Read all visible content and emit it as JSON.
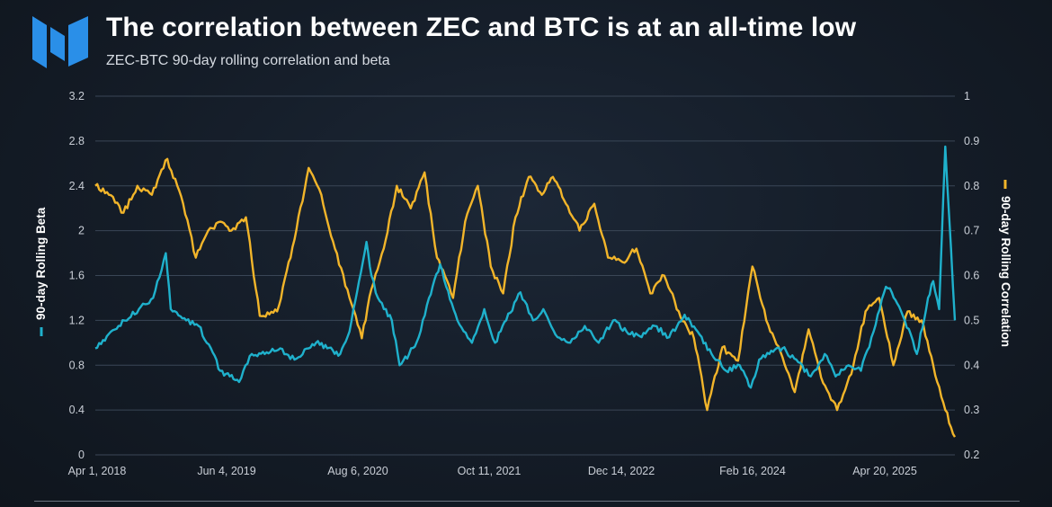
{
  "header": {
    "title": "The correlation between ZEC and BTC is at an all-time low",
    "subtitle": "ZEC-BTC 90-day rolling correlation and beta"
  },
  "colors": {
    "beta": "#1fb1cc",
    "correlation": "#f2b52a",
    "logo": "#2a8fe8",
    "grid": "#3a4656"
  },
  "chart_data": {
    "type": "line",
    "x_ticks": [
      "Apr 1, 2018",
      "Jun 4, 2019",
      "Aug 6, 2020",
      "Oct 11, 2021",
      "Dec 14, 2022",
      "Feb 16, 2024",
      "Apr 20, 2025"
    ],
    "x_range": [
      "2018-04-01",
      "2025-11-10"
    ],
    "y_left": {
      "label": "90-day Rolling Beta",
      "ticks": [
        "0",
        "0.4",
        "0.8",
        "1.2",
        "1.6",
        "2",
        "2.4",
        "2.8",
        "3.2"
      ],
      "range": [
        0,
        3.2
      ]
    },
    "y_right": {
      "label": "90-day Rolling Correlation",
      "ticks": [
        "0.2",
        "0.3",
        "0.4",
        "0.5",
        "0.6",
        "0.7",
        "0.8",
        "0.9",
        "1"
      ],
      "range": [
        0.2,
        1.0
      ]
    },
    "grid": true,
    "series": [
      {
        "name": "90-day Rolling Beta",
        "axis": "left",
        "color": "#1fb1cc",
        "x": [
          "2018-04-01",
          "2018-06-15",
          "2018-08-20",
          "2018-10-05",
          "2018-11-15",
          "2018-12-01",
          "2019-01-20",
          "2019-03-01",
          "2019-04-10",
          "2019-05-10",
          "2019-06-10",
          "2019-07-10",
          "2019-08-20",
          "2019-10-01",
          "2019-11-20",
          "2020-01-05",
          "2020-02-20",
          "2020-03-15",
          "2020-04-20",
          "2020-06-01",
          "2020-07-01",
          "2020-08-01",
          "2020-08-25",
          "2020-09-10",
          "2020-10-01",
          "2020-11-15",
          "2020-12-10",
          "2021-01-10",
          "2021-02-10",
          "2021-03-15",
          "2021-04-20",
          "2021-05-10",
          "2021-06-15",
          "2021-08-01",
          "2021-09-10",
          "2021-10-15",
          "2021-11-20",
          "2022-01-05",
          "2022-02-15",
          "2022-03-20",
          "2022-05-05",
          "2022-06-15",
          "2022-08-01",
          "2022-09-15",
          "2022-11-01",
          "2022-12-14",
          "2023-02-01",
          "2023-03-15",
          "2023-05-01",
          "2023-06-20",
          "2023-08-01",
          "2023-09-15",
          "2023-11-01",
          "2023-12-15",
          "2024-01-20",
          "2024-02-16",
          "2024-03-20",
          "2024-05-01",
          "2024-06-15",
          "2024-08-01",
          "2024-09-15",
          "2024-10-20",
          "2024-12-01",
          "2025-01-10",
          "2025-02-20",
          "2025-04-01",
          "2025-04-20",
          "2025-06-01",
          "2025-07-10",
          "2025-08-15",
          "2025-09-01",
          "2025-09-20",
          "2025-10-10",
          "2025-11-10"
        ],
        "values": [
          0.95,
          1.15,
          1.3,
          1.4,
          1.8,
          1.3,
          1.2,
          1.15,
          0.95,
          0.75,
          0.7,
          0.65,
          0.9,
          0.9,
          0.95,
          0.85,
          0.95,
          1.0,
          0.95,
          0.9,
          1.1,
          1.55,
          1.9,
          1.6,
          1.4,
          1.2,
          0.8,
          0.9,
          1.05,
          1.4,
          1.7,
          1.5,
          1.2,
          1.0,
          1.3,
          1.0,
          1.2,
          1.45,
          1.2,
          1.3,
          1.05,
          1.0,
          1.15,
          1.0,
          1.2,
          1.1,
          1.05,
          1.15,
          1.05,
          1.25,
          1.1,
          0.9,
          0.75,
          0.8,
          0.6,
          0.85,
          0.9,
          0.95,
          0.85,
          0.7,
          0.9,
          0.7,
          0.8,
          0.75,
          1.1,
          1.5,
          1.45,
          1.2,
          0.9,
          1.4,
          1.55,
          1.3,
          2.75,
          1.2
        ]
      },
      {
        "name": "90-day Rolling Correlation",
        "axis": "right",
        "color": "#f2b52a",
        "x": [
          "2018-04-01",
          "2018-05-15",
          "2018-07-01",
          "2018-08-15",
          "2018-10-01",
          "2018-11-20",
          "2019-01-10",
          "2019-02-20",
          "2019-04-01",
          "2019-05-10",
          "2019-06-15",
          "2019-08-01",
          "2019-09-15",
          "2019-11-10",
          "2020-01-05",
          "2020-02-20",
          "2020-04-01",
          "2020-05-15",
          "2020-07-01",
          "2020-08-10",
          "2020-09-10",
          "2020-10-20",
          "2020-12-01",
          "2021-01-15",
          "2021-03-01",
          "2021-04-10",
          "2021-06-01",
          "2021-07-10",
          "2021-08-20",
          "2021-10-01",
          "2021-11-10",
          "2021-12-20",
          "2022-02-01",
          "2022-03-15",
          "2022-04-20",
          "2022-06-01",
          "2022-07-15",
          "2022-09-01",
          "2022-10-15",
          "2022-12-01",
          "2023-01-15",
          "2023-03-01",
          "2023-04-15",
          "2023-06-01",
          "2023-07-20",
          "2023-09-01",
          "2023-10-20",
          "2023-12-10",
          "2024-01-25",
          "2024-03-10",
          "2024-04-25",
          "2024-06-10",
          "2024-07-25",
          "2024-09-10",
          "2024-10-25",
          "2024-12-10",
          "2025-01-25",
          "2025-03-10",
          "2025-04-25",
          "2025-06-10",
          "2025-07-25",
          "2025-09-01",
          "2025-10-10",
          "2025-11-10"
        ],
        "values": [
          0.8,
          0.78,
          0.74,
          0.8,
          0.78,
          0.86,
          0.76,
          0.64,
          0.7,
          0.72,
          0.7,
          0.73,
          0.51,
          0.52,
          0.68,
          0.84,
          0.78,
          0.66,
          0.55,
          0.46,
          0.57,
          0.66,
          0.8,
          0.75,
          0.83,
          0.64,
          0.55,
          0.72,
          0.8,
          0.62,
          0.56,
          0.73,
          0.82,
          0.78,
          0.82,
          0.76,
          0.7,
          0.76,
          0.64,
          0.63,
          0.66,
          0.56,
          0.6,
          0.52,
          0.46,
          0.3,
          0.44,
          0.41,
          0.62,
          0.5,
          0.43,
          0.34,
          0.48,
          0.36,
          0.3,
          0.38,
          0.52,
          0.55,
          0.4,
          0.52,
          0.5,
          0.4,
          0.3,
          0.24
        ]
      }
    ]
  }
}
